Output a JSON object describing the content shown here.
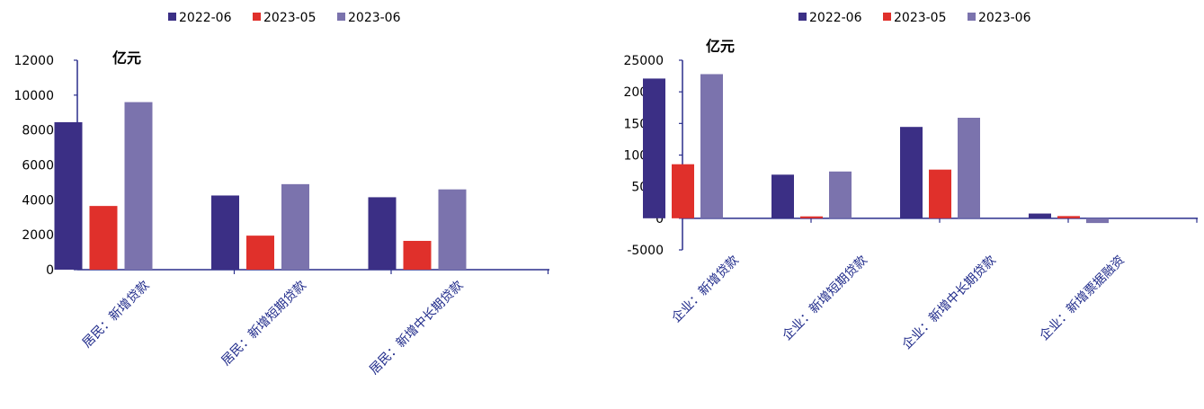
{
  "chart_data": [
    {
      "type": "bar",
      "unit_label": "亿元",
      "categories": [
        "居民：新增贷款",
        "居民：新增短期贷款",
        "居民：新增中长期贷款"
      ],
      "series": [
        {
          "name": "2022-06",
          "color": "#3b2f85",
          "values": [
            8450,
            4250,
            4150
          ]
        },
        {
          "name": "2023-05",
          "color": "#e0302b",
          "values": [
            3650,
            1950,
            1650
          ]
        },
        {
          "name": "2023-06",
          "color": "#7b73ad",
          "values": [
            9600,
            4900,
            4600
          ]
        }
      ],
      "ylim": [
        0,
        12000
      ],
      "yticks": [
        0,
        2000,
        4000,
        6000,
        8000,
        10000,
        12000
      ],
      "ytick_labels": [
        "0",
        "2000",
        "4000",
        "6000",
        "8000",
        "10000",
        "12000"
      ],
      "legend_position": "top",
      "grid": false
    },
    {
      "type": "bar",
      "unit_label": "亿元",
      "categories": [
        "企业：新增贷款",
        "企业：新增短期贷款",
        "企业：新增中长期贷款",
        "企业：新增票据融资"
      ],
      "series": [
        {
          "name": "2022-06",
          "color": "#3b2f85",
          "values": [
            22100,
            6900,
            14450,
            750
          ]
        },
        {
          "name": "2023-05",
          "color": "#e0302b",
          "values": [
            8550,
            300,
            7700,
            350
          ]
        },
        {
          "name": "2023-06",
          "color": "#7b73ad",
          "values": [
            22800,
            7400,
            15900,
            -750
          ]
        }
      ],
      "ylim": [
        -5000,
        25000
      ],
      "yticks": [
        -5000,
        0,
        5000,
        10000,
        15000,
        20000,
        25000
      ],
      "ytick_labels": [
        "-5000",
        "0",
        "5000",
        "10000",
        "15000",
        "20000",
        "25000"
      ],
      "legend_position": "top",
      "grid": false
    }
  ]
}
